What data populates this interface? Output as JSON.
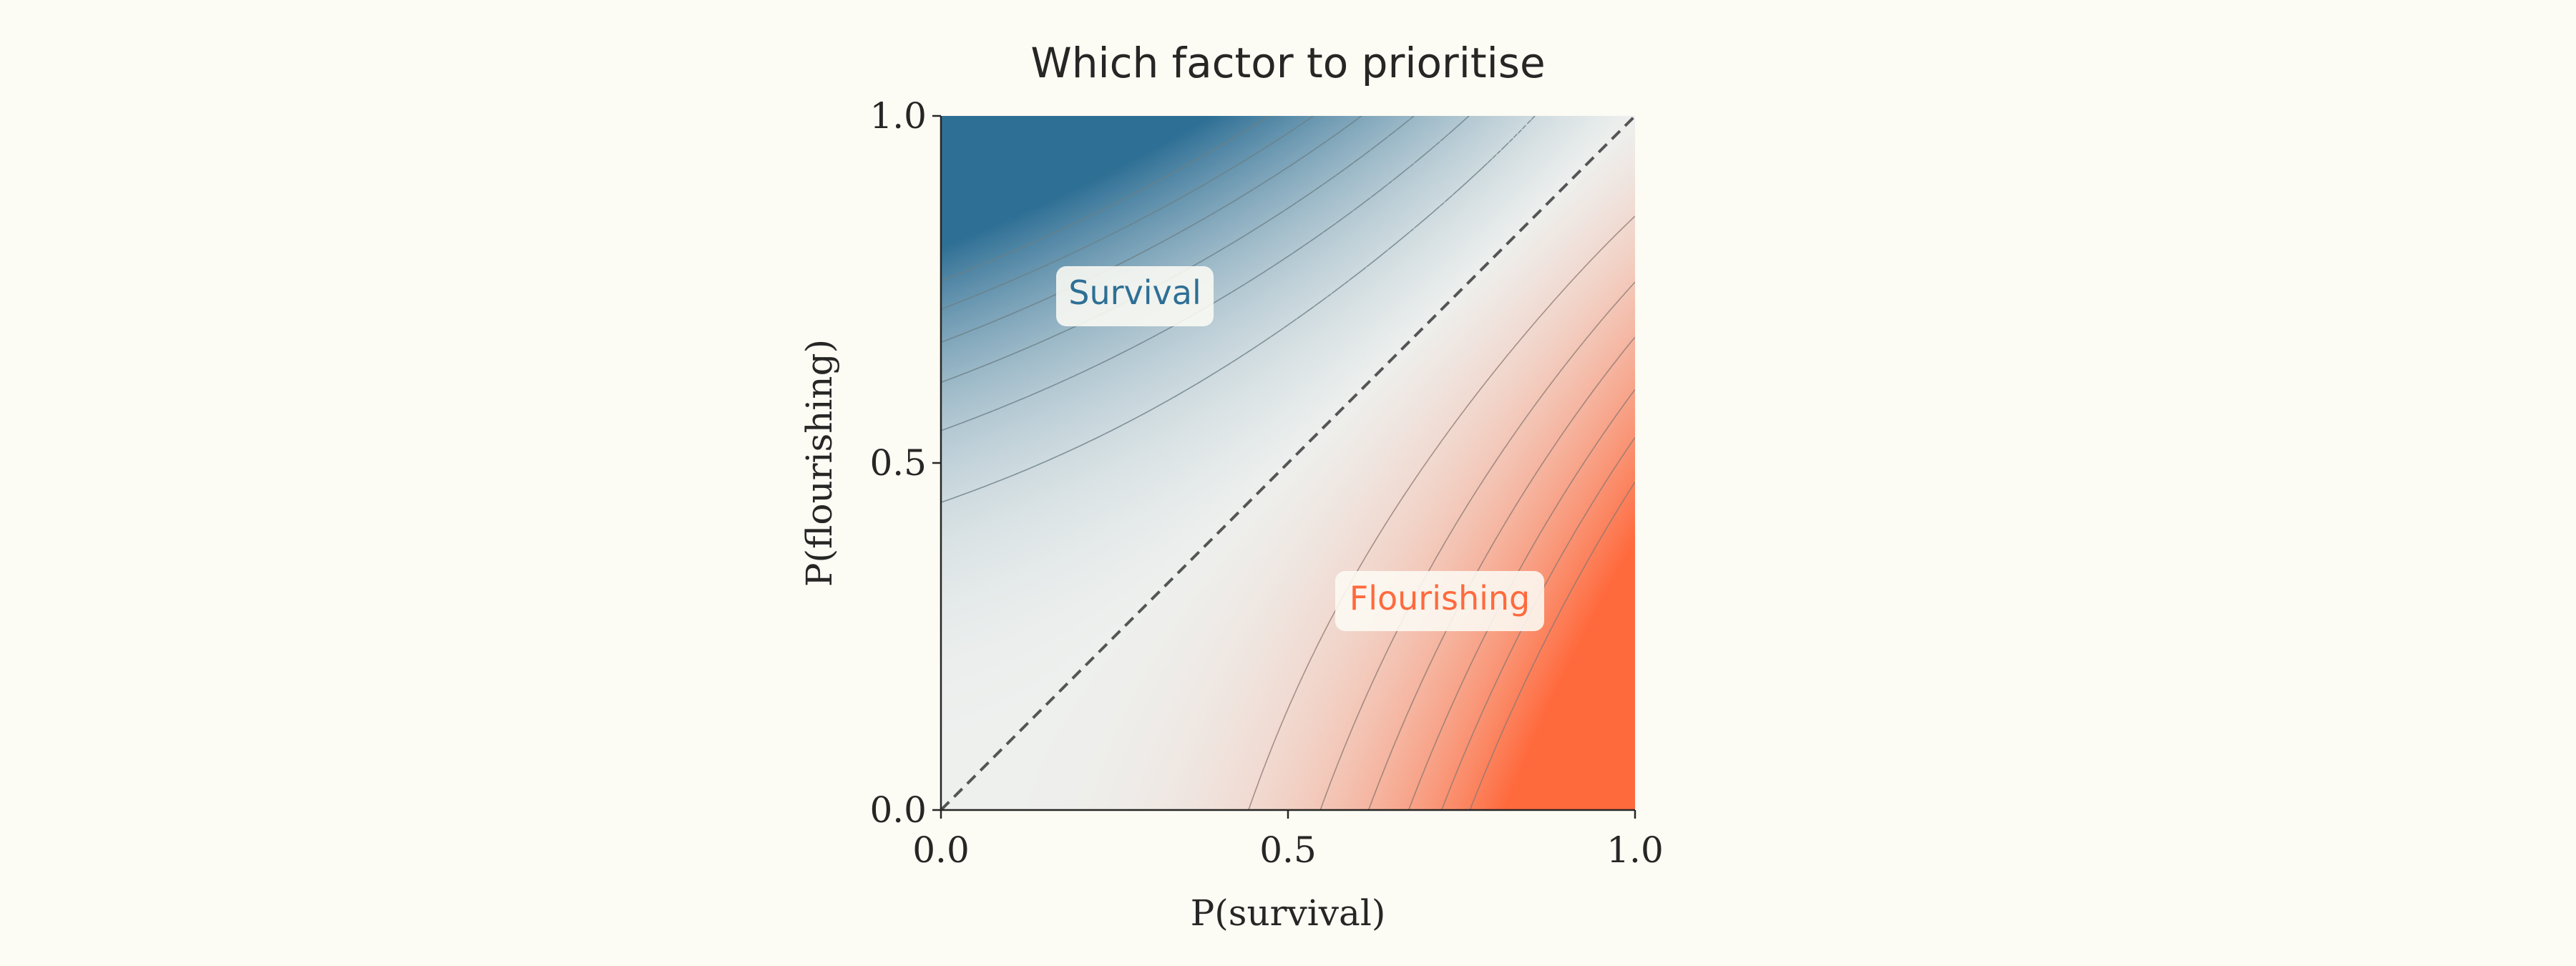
{
  "chart_data": {
    "type": "heatmap",
    "title": "Which factor to prioritise",
    "xlabel": "P(survival)",
    "ylabel": "P(flourishing)",
    "xlim": [
      0.0,
      1.0
    ],
    "ylim": [
      0.0,
      1.0
    ],
    "x_ticks": [
      "0.0",
      "0.5",
      "1.0"
    ],
    "y_ticks": [
      "0.0",
      "0.5",
      "1.0"
    ],
    "diagonal_reference_line": {
      "from": [
        0.0,
        0.0
      ],
      "to": [
        1.0,
        1.0
      ],
      "style": "dashed"
    },
    "regions": [
      {
        "label": "Survival",
        "area": "above diagonal (P(flourishing) > P(survival))",
        "peak": [
          0.5,
          1.0
        ],
        "color": "#2e6f95",
        "contour_style": "dashed"
      },
      {
        "label": "Flourishing",
        "area": "below diagonal (P(survival) > P(flourishing))",
        "peak": [
          1.0,
          0.5
        ],
        "color": "#ff6a3d",
        "contour_style": "solid"
      }
    ],
    "grid": false,
    "legend": "none"
  },
  "colors": {
    "background": "#fcfbf4",
    "survival": "#2e6f95",
    "flourishing": "#ff6a3d",
    "neutral": "#eef0ee",
    "axis": "#262625"
  }
}
